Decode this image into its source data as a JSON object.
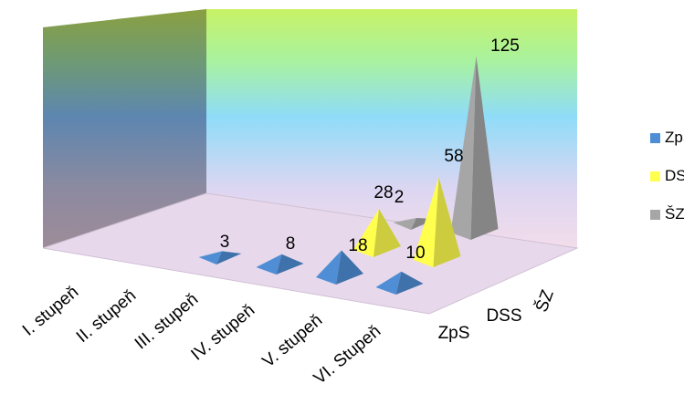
{
  "chart_data": {
    "type": "bar",
    "shape": "3d-pyramid",
    "categories": [
      "I. stupeň",
      "II. stupeň",
      "III. stupeň",
      "IV. stupeň",
      "V. stupeň",
      "VI. Stupeň"
    ],
    "depth_categories": [
      "ZpS",
      "DSS",
      "ŠZ"
    ],
    "series": [
      {
        "name": "ZpS",
        "color": "#4f8ed4",
        "values": [
          0,
          0,
          3,
          8,
          18,
          10
        ]
      },
      {
        "name": "DSS",
        "color": "#ffff4d",
        "values": [
          0,
          0,
          0,
          0,
          28,
          58
        ]
      },
      {
        "name": "ŠZ",
        "color": "#a6a6a6",
        "values": [
          0,
          0,
          0,
          0,
          2,
          125
        ]
      }
    ],
    "data_labels": [
      {
        "series": "ZpS",
        "category": "III. stupeň",
        "text": "3"
      },
      {
        "series": "ZpS",
        "category": "IV. stupeň",
        "text": "8"
      },
      {
        "series": "ZpS",
        "category": "V. stupeň",
        "text": "18"
      },
      {
        "series": "ZpS",
        "category": "VI. Stupeň",
        "text": "10"
      },
      {
        "series": "DSS",
        "category": "V. stupeň",
        "text": "28"
      },
      {
        "series": "DSS",
        "category": "VI. Stupeň",
        "text": "58"
      },
      {
        "series": "ŠZ",
        "category": "V. stupeň",
        "text": "2"
      },
      {
        "series": "ŠZ",
        "category": "VI. Stupeň",
        "text": "125"
      }
    ],
    "legend_position": "right",
    "grid": false
  }
}
